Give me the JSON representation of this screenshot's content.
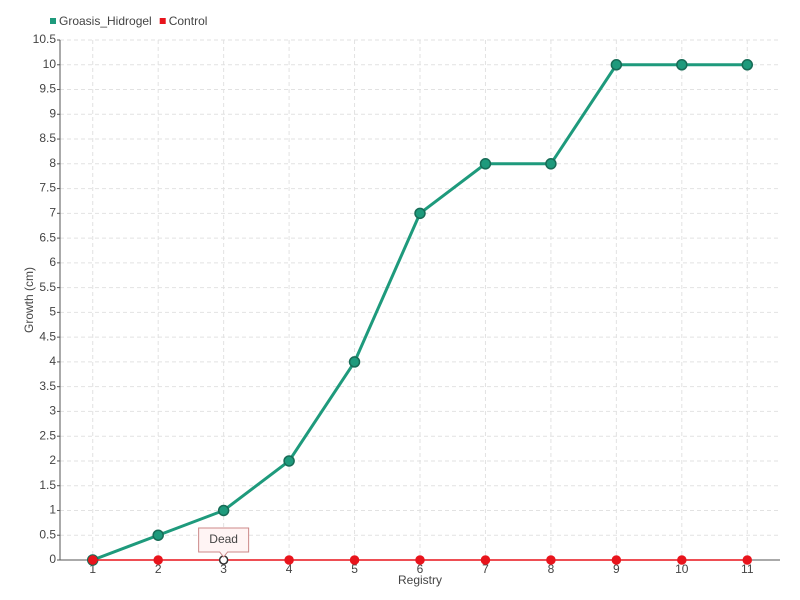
{
  "chart_data": {
    "type": "line",
    "x_label": "Registry",
    "y_label": "Growth (cm)",
    "categories": [
      "1",
      "2",
      "3",
      "4",
      "5",
      "6",
      "7",
      "8",
      "9",
      "10",
      "11"
    ],
    "series": [
      {
        "name": "Groasis_Hidrogel",
        "color": "#1e9a7c",
        "values": [
          0,
          0.5,
          1,
          2,
          4,
          7,
          8,
          8,
          10,
          10,
          10
        ]
      },
      {
        "name": "Control",
        "color": "#e8141c",
        "values": [
          0,
          0,
          0,
          0,
          0,
          0,
          0,
          0,
          0,
          0,
          0
        ]
      }
    ],
    "annotations": [
      {
        "text": "Dead",
        "x": "3"
      }
    ],
    "ylim": [
      0,
      10.5
    ],
    "yticks": [
      0,
      0.5,
      1,
      1.5,
      2,
      2.5,
      3,
      3.5,
      4,
      4.5,
      5,
      5.5,
      6,
      6.5,
      7,
      7.5,
      8,
      8.5,
      9,
      9.5,
      10,
      10.5
    ],
    "grid": true,
    "legend": "top-left"
  }
}
